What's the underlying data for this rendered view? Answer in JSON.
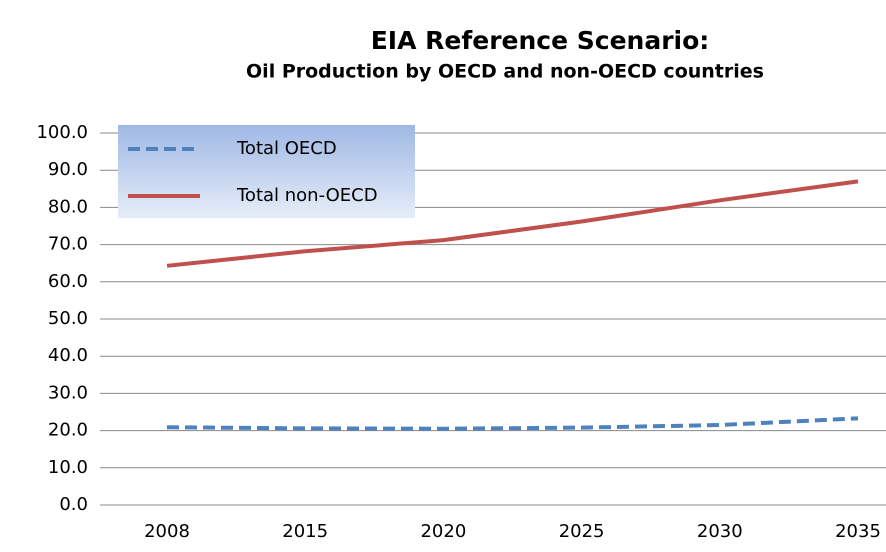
{
  "chart_data": {
    "type": "line",
    "title": "EIA Reference Scenario:",
    "subtitle": "Oil Production by OECD and non-OECD countries",
    "categories": [
      "2008",
      "2015",
      "2020",
      "2025",
      "2030",
      "2035"
    ],
    "series": [
      {
        "name": "Total OECD",
        "color": "#4f81bd",
        "dashed": true,
        "values": [
          20.9,
          20.6,
          20.5,
          20.8,
          21.5,
          23.3
        ]
      },
      {
        "name": "Total non-OECD",
        "color": "#c0504d",
        "dashed": false,
        "values": [
          64.3,
          68.2,
          71.2,
          76.2,
          81.9,
          87.0
        ]
      }
    ],
    "ylim": [
      0,
      100
    ],
    "yticks": [
      {
        "value": 0,
        "label": "0.0"
      },
      {
        "value": 10,
        "label": "10.0"
      },
      {
        "value": 20,
        "label": "20.0"
      },
      {
        "value": 30,
        "label": "30.0"
      },
      {
        "value": 40,
        "label": "40.0"
      },
      {
        "value": 50,
        "label": "50.0"
      },
      {
        "value": 60,
        "label": "60.0"
      },
      {
        "value": 70,
        "label": "70.0"
      },
      {
        "value": 80,
        "label": "80.0"
      },
      {
        "value": 90,
        "label": "90.0"
      },
      {
        "value": 100,
        "label": "100.0"
      }
    ],
    "grid": true,
    "legend": "upper left"
  }
}
